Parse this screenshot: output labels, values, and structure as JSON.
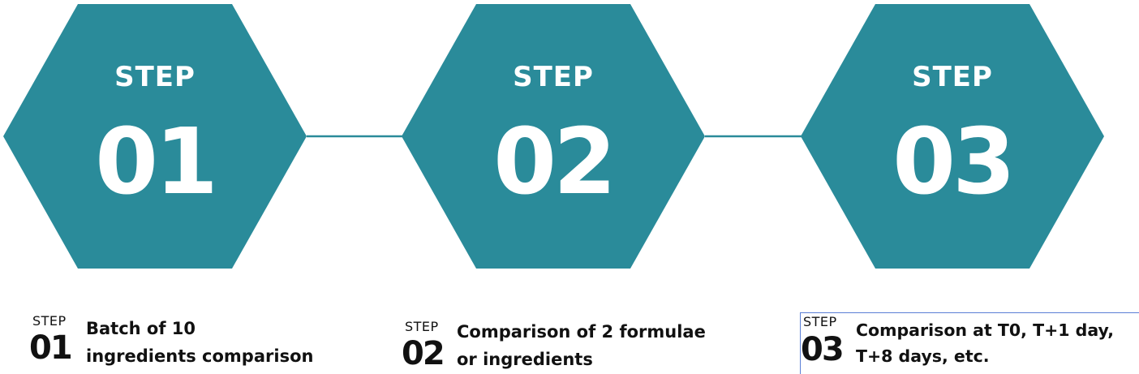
{
  "colors": {
    "hex": "#2a8b9a",
    "caption_text": "#111111"
  },
  "steps": [
    {
      "label": "STEP",
      "number": "01",
      "caption_step": "STEP",
      "caption_number": "01",
      "caption_line1": "Batch of 10",
      "caption_line2": "ingredients comparison"
    },
    {
      "label": "STEP",
      "number": "02",
      "caption_step": "STEP",
      "caption_number": "02",
      "caption_line1": "Comparison of 2 formulae",
      "caption_line2": "or ingredients"
    },
    {
      "label": "STEP",
      "number": "03",
      "caption_step": "STEP",
      "caption_number": "03",
      "caption_line1": "Comparison at T0, T+1 day,",
      "caption_line2": "T+8 days, etc."
    }
  ]
}
